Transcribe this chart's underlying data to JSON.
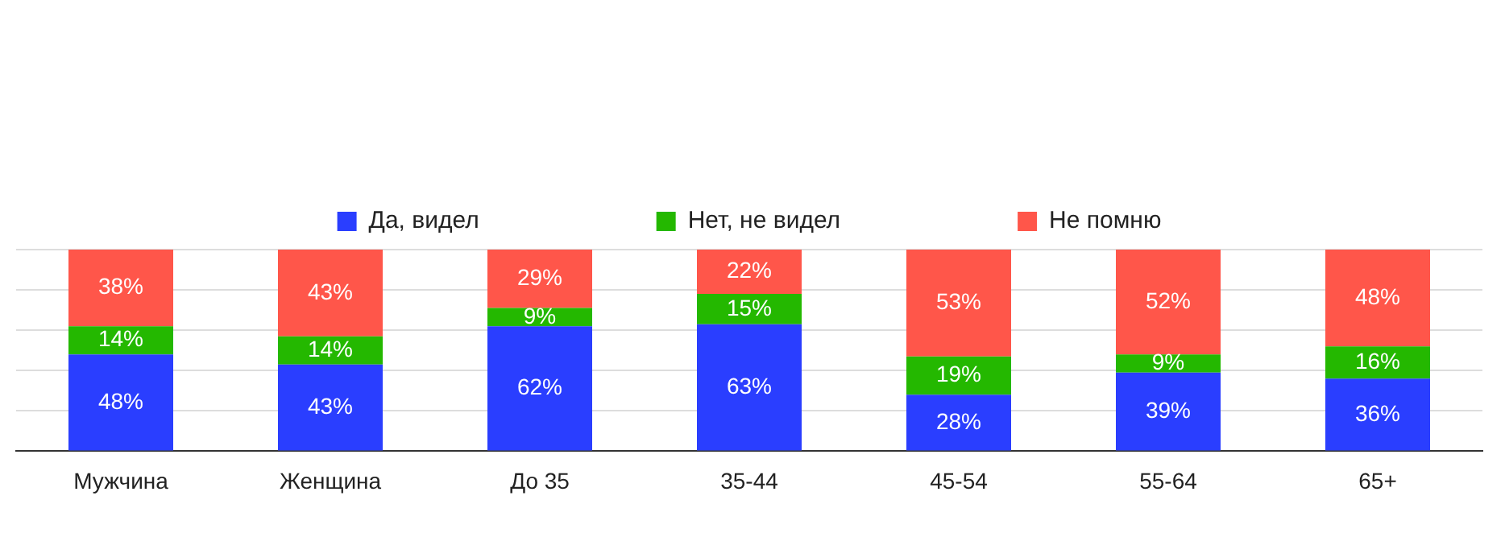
{
  "chart_data": {
    "type": "bar",
    "stacked": true,
    "categories": [
      "Мужчина",
      "Женщина",
      "До 35",
      "35-44",
      "45-54",
      "55-64",
      "65+"
    ],
    "series": [
      {
        "name": "Да, видел",
        "color": "#2a3eff",
        "values": [
          48,
          43,
          62,
          63,
          28,
          39,
          36
        ],
        "value_labels": [
          "48%",
          "43%",
          "62%",
          "63%",
          "28%",
          "39%",
          "36%"
        ]
      },
      {
        "name": "Нет, не видел",
        "color": "#24b800",
        "values": [
          14,
          14,
          9,
          15,
          19,
          9,
          16
        ],
        "value_labels": [
          "14%",
          "14%",
          "9%",
          "15%",
          "19%",
          "9%",
          "16%"
        ]
      },
      {
        "name": "Не помню",
        "color": "#ff564a",
        "values": [
          38,
          43,
          29,
          22,
          53,
          52,
          48
        ],
        "value_labels": [
          "38%",
          "43%",
          "29%",
          "22%",
          "53%",
          "52%",
          "48%"
        ]
      }
    ],
    "ylim": [
      0,
      100
    ],
    "yticks": [
      {
        "value": 0,
        "label": null
      },
      {
        "value": 20,
        "label": null
      },
      {
        "value": 40,
        "label": null
      },
      {
        "value": 60,
        "label": null
      },
      {
        "value": 80,
        "label": null
      },
      {
        "value": 100,
        "label": null
      }
    ],
    "grid": "y",
    "legend": "top",
    "tick_labels": "x"
  }
}
